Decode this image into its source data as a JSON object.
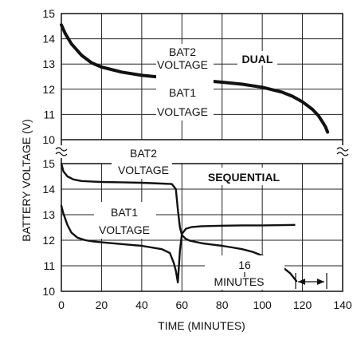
{
  "chart_data": [
    {
      "type": "line",
      "panel": "upper",
      "title": "",
      "xlabel": "TIME (MINUTES)",
      "ylabel": "BATTERY VOLTAGE (V)",
      "xlim": [
        0,
        140
      ],
      "ylim": [
        10,
        15
      ],
      "x_ticks": [
        "0",
        "20",
        "40",
        "60",
        "80",
        "100",
        "120",
        "140"
      ],
      "y_ticks": [
        "10",
        "11",
        "12",
        "13",
        "14",
        "15"
      ],
      "grid": true,
      "annotations": {
        "mode": "DUAL",
        "bat2": [
          "BAT2",
          "VOLTAGE"
        ],
        "bat1": [
          "BAT1",
          "VOLTAGE"
        ]
      },
      "series": [
        {
          "x": [
            0,
            2,
            5,
            10,
            15,
            20,
            30,
            40,
            50,
            60,
            70,
            80,
            90,
            100,
            110,
            115,
            120,
            125,
            128,
            130,
            131.5,
            132.5
          ],
          "y": [
            14.55,
            14.2,
            13.8,
            13.35,
            13.05,
            12.88,
            12.68,
            12.55,
            12.47,
            12.4,
            12.35,
            12.28,
            12.2,
            12.08,
            11.88,
            11.72,
            11.5,
            11.2,
            10.95,
            10.7,
            10.5,
            10.3
          ]
        }
      ]
    },
    {
      "type": "line",
      "panel": "lower",
      "title": "",
      "xlim": [
        0,
        140
      ],
      "ylim": [
        10,
        15
      ],
      "y_ticks": [
        "10",
        "11",
        "12",
        "13",
        "14",
        "15"
      ],
      "grid": true,
      "annotations": {
        "mode": "SEQUENTIAL",
        "bat2": [
          "BAT2",
          "VOLTAGE"
        ],
        "bat1": [
          "BAT1",
          "VOLTAGE"
        ],
        "gap": [
          "16",
          "MINUTES"
        ]
      },
      "series": [
        {
          "name": "BAT2",
          "x": [
            0,
            1,
            3,
            6,
            10,
            15,
            20,
            30,
            40,
            50,
            55,
            57,
            58,
            59,
            60,
            62,
            64,
            67,
            70,
            75,
            80,
            85,
            90,
            95,
            100,
            105,
            110,
            114,
            116,
            117
          ],
          "y": [
            15.0,
            14.7,
            14.5,
            14.38,
            14.32,
            14.3,
            14.28,
            14.27,
            14.25,
            14.22,
            14.2,
            14.0,
            13.2,
            12.5,
            12.2,
            12.05,
            11.98,
            11.93,
            11.88,
            11.83,
            11.78,
            11.72,
            11.65,
            11.55,
            11.4,
            11.2,
            10.95,
            10.7,
            10.5,
            10.4
          ]
        },
        {
          "name": "BAT1",
          "x": [
            0,
            1,
            3,
            5,
            8,
            12,
            16,
            20,
            30,
            40,
            50,
            54,
            56,
            57,
            58,
            59,
            60,
            62,
            65,
            70,
            80,
            90,
            100,
            110,
            116
          ],
          "y": [
            13.35,
            13.05,
            12.6,
            12.3,
            12.1,
            12.0,
            11.95,
            11.92,
            11.85,
            11.78,
            11.65,
            11.5,
            11.1,
            10.8,
            10.35,
            11.6,
            12.25,
            12.45,
            12.52,
            12.55,
            12.57,
            12.58,
            12.58,
            12.59,
            12.6
          ]
        }
      ]
    }
  ]
}
